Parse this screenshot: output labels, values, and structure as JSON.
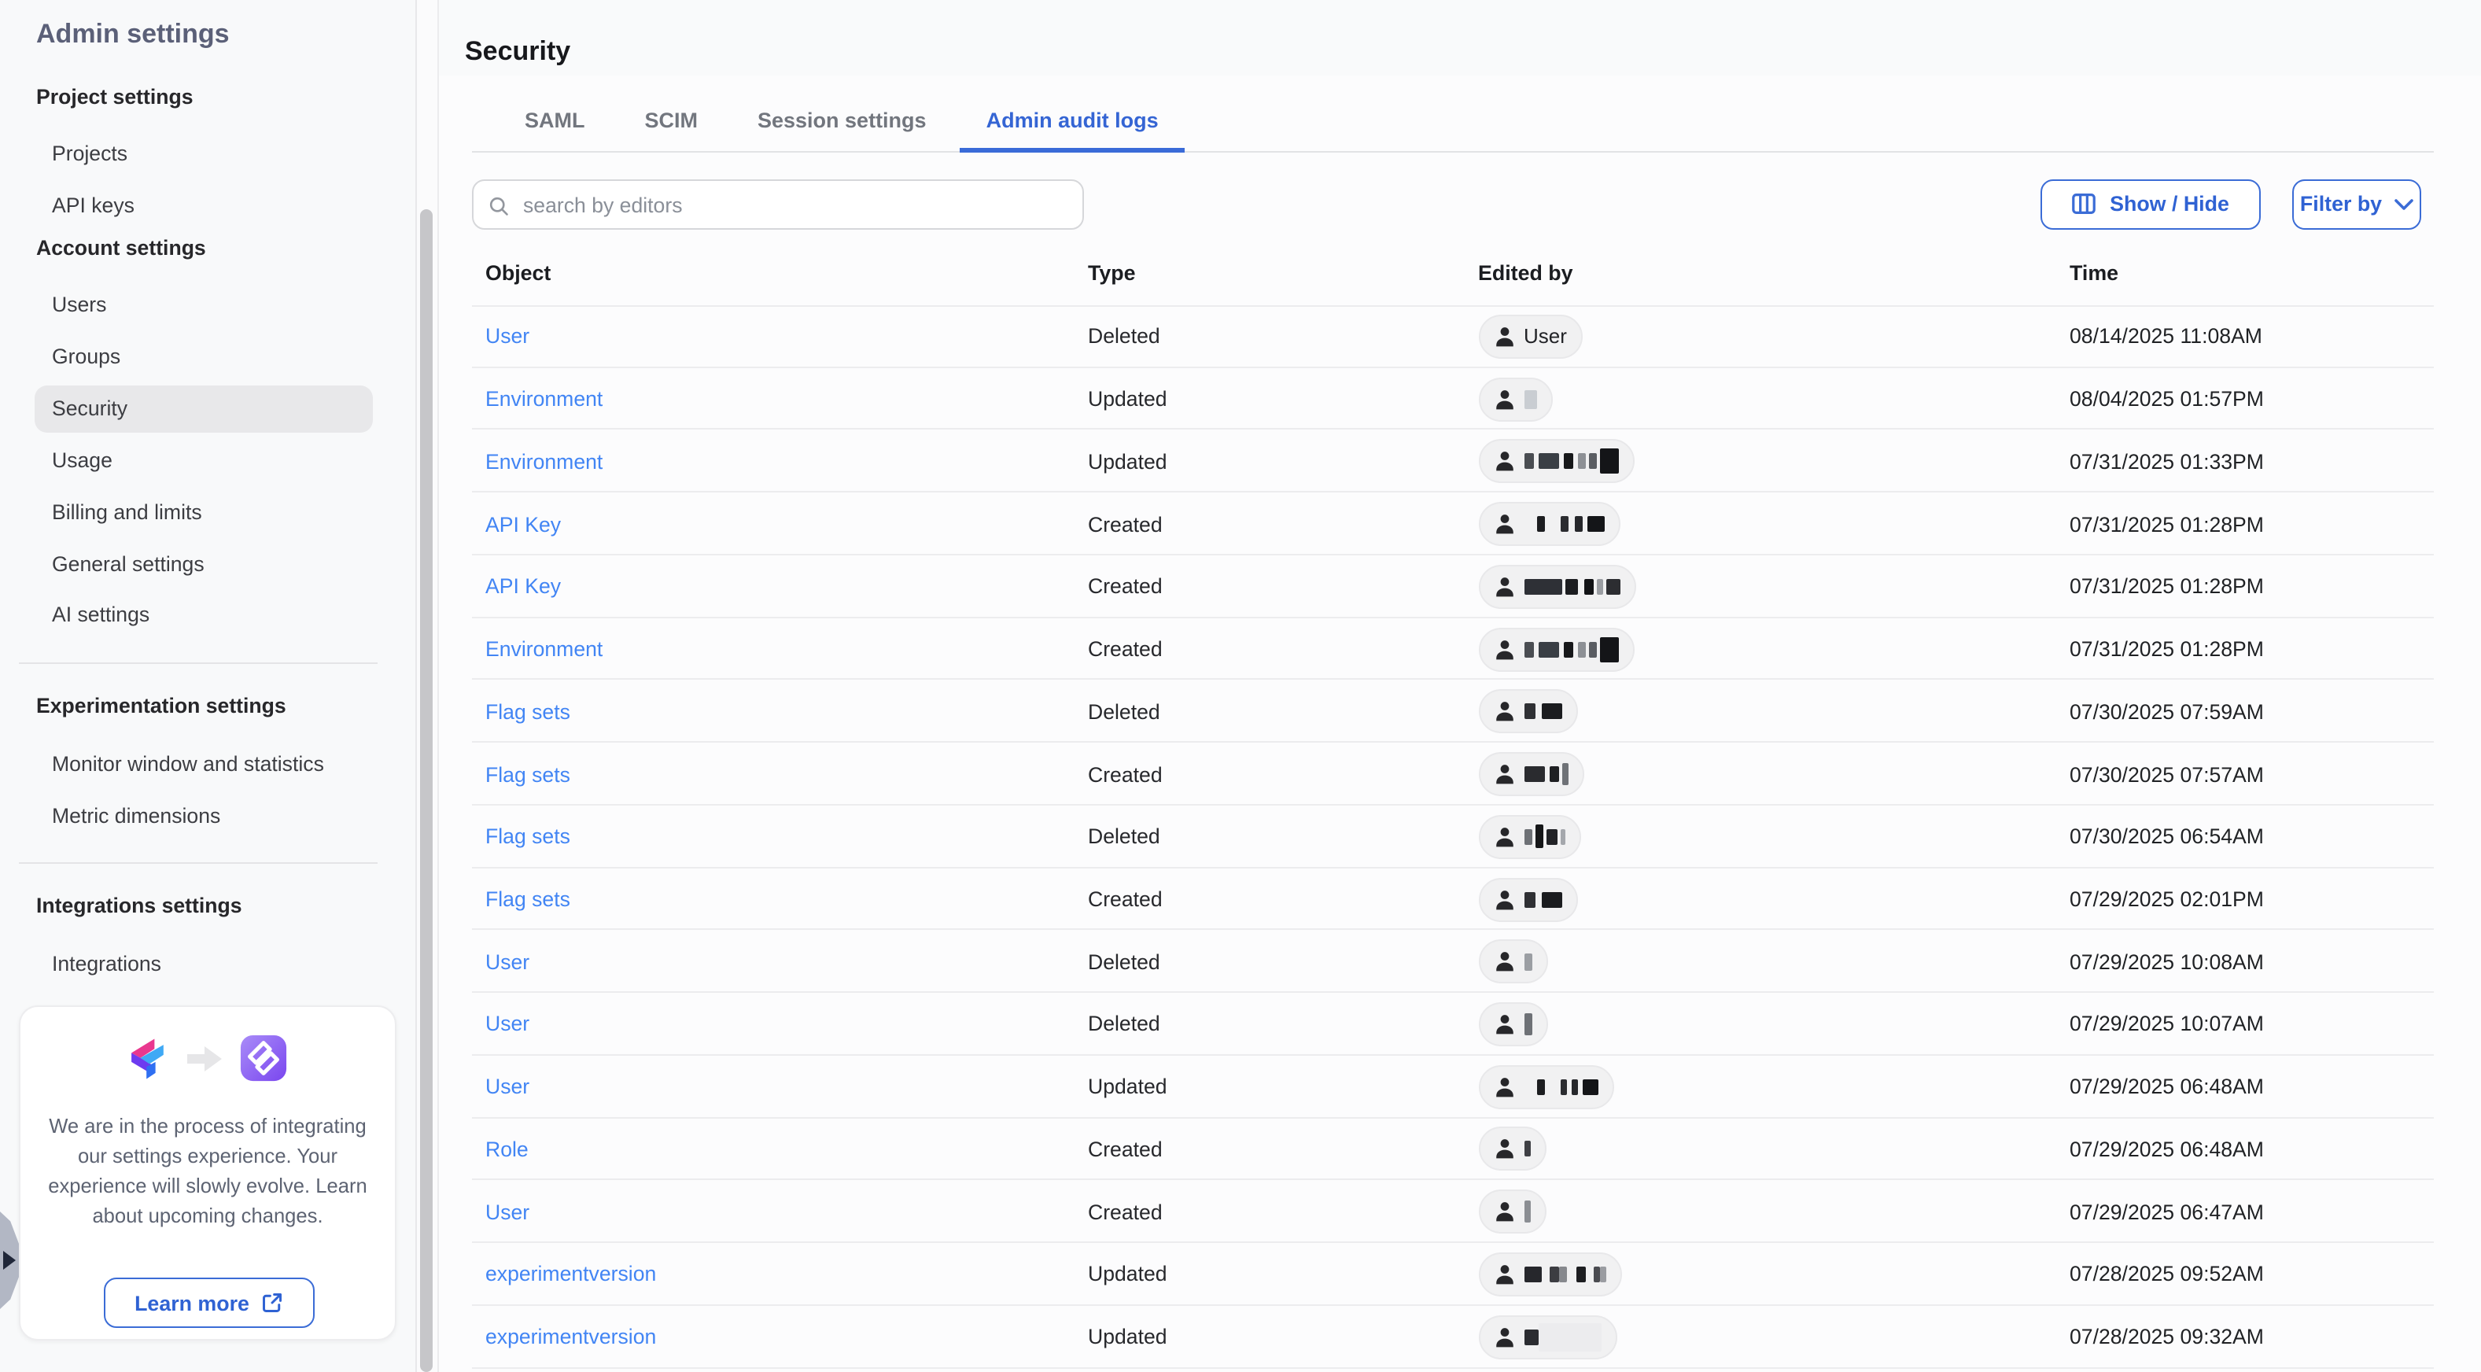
{
  "sidebar": {
    "title": "Admin settings",
    "sections": [
      {
        "type": "header",
        "label": "Project settings"
      },
      {
        "type": "item",
        "label": "Projects"
      },
      {
        "type": "item",
        "label": "API keys"
      },
      {
        "type": "header",
        "label": "Account settings"
      },
      {
        "type": "item",
        "label": "Users"
      },
      {
        "type": "item",
        "label": "Groups"
      },
      {
        "type": "item",
        "label": "Security",
        "selected": true
      },
      {
        "type": "item",
        "label": "Usage"
      },
      {
        "type": "item",
        "label": "Billing and limits"
      },
      {
        "type": "item",
        "label": "General settings"
      },
      {
        "type": "item",
        "label": "AI settings"
      },
      {
        "type": "divider"
      },
      {
        "type": "header",
        "label": "Experimentation settings"
      },
      {
        "type": "item",
        "label": "Monitor window and statistics"
      },
      {
        "type": "item",
        "label": "Metric dimensions"
      },
      {
        "type": "divider"
      },
      {
        "type": "header",
        "label": "Integrations settings"
      },
      {
        "type": "item",
        "label": "Integrations"
      }
    ],
    "promo": {
      "text": "We are in the process of integrating our settings experience. Your experience will slowly evolve. Learn about upcoming changes.",
      "button_label": "Learn more",
      "icons": [
        "split-logo",
        "arrow-right-icon",
        "new-platform-logo",
        "external-link-icon"
      ]
    }
  },
  "header": {
    "title": "Security"
  },
  "tabs": [
    {
      "label": "SAML",
      "active": false
    },
    {
      "label": "SCIM",
      "active": false
    },
    {
      "label": "Session settings",
      "active": false
    },
    {
      "label": "Admin audit logs",
      "active": true
    }
  ],
  "toolbar": {
    "search_placeholder": "search by editors",
    "show_hide_label": "Show / Hide",
    "filter_by_label": "Filter by",
    "icons": [
      "search-icon",
      "columns-icon",
      "chevron-down-icon"
    ]
  },
  "table": {
    "columns": [
      "Object",
      "Type",
      "Edited by",
      "Time"
    ],
    "rows": [
      {
        "object": "User",
        "type": "Deleted",
        "editor": {
          "label": "User"
        },
        "time": "08/14/2025 11:08AM"
      },
      {
        "object": "Environment",
        "type": "Updated",
        "editor": {
          "redacted": true,
          "blocks": [
            {
              "w": 8,
              "c": "#c9cdd2",
              "h": 12
            }
          ]
        },
        "time": "08/04/2025 01:57PM"
      },
      {
        "object": "Environment",
        "type": "Updated",
        "editor": {
          "redacted": true,
          "blocks": [
            {
              "w": 6,
              "c": "#4a4d52"
            },
            {
              "w": 3
            },
            {
              "w": 13,
              "c": "#3a3f45"
            },
            {
              "w": 3
            },
            {
              "w": 6,
              "c": "#17181a"
            },
            {
              "w": 3
            },
            {
              "w": 5,
              "c": "#8d9095"
            },
            {
              "w": 2
            },
            {
              "w": 5,
              "c": "#5a5d62"
            },
            {
              "w": 2
            },
            {
              "w": 12,
              "c": "#141518",
              "h": 16
            }
          ]
        },
        "time": "07/31/2025 01:33PM"
      },
      {
        "object": "API Key",
        "type": "Created",
        "editor": {
          "redacted": true,
          "blocks": [
            {
              "w": 8
            },
            {
              "w": 5,
              "c": "#1c1d20"
            },
            {
              "w": 10
            },
            {
              "w": 5,
              "c": "#2b2c30"
            },
            {
              "w": 4
            },
            {
              "w": 5,
              "c": "#26272b"
            },
            {
              "w": 3
            },
            {
              "w": 11,
              "c": "#141518"
            }
          ]
        },
        "time": "07/31/2025 01:28PM"
      },
      {
        "object": "API Key",
        "type": "Created",
        "editor": {
          "redacted": true,
          "blocks": [
            {
              "w": 24,
              "c": "#2e3036"
            },
            {
              "w": 2
            },
            {
              "w": 8,
              "c": "#1c1d20"
            },
            {
              "w": 4
            },
            {
              "w": 6,
              "c": "#121316"
            },
            {
              "w": 2
            },
            {
              "w": 4,
              "c": "#9a9da2"
            },
            {
              "w": 2
            },
            {
              "w": 9,
              "c": "#2c2d31"
            }
          ]
        },
        "time": "07/31/2025 01:28PM"
      },
      {
        "object": "Environment",
        "type": "Created",
        "editor": {
          "redacted": true,
          "blocks": [
            {
              "w": 6,
              "c": "#4a4d52"
            },
            {
              "w": 3
            },
            {
              "w": 13,
              "c": "#3a3f45"
            },
            {
              "w": 3
            },
            {
              "w": 6,
              "c": "#17181a"
            },
            {
              "w": 3
            },
            {
              "w": 5,
              "c": "#8d9095"
            },
            {
              "w": 2
            },
            {
              "w": 5,
              "c": "#5a5d62"
            },
            {
              "w": 2
            },
            {
              "w": 12,
              "c": "#141518",
              "h": 16
            }
          ]
        },
        "time": "07/31/2025 01:28PM"
      },
      {
        "object": "Flag sets",
        "type": "Deleted",
        "editor": {
          "redacted": true,
          "blocks": [
            {
              "w": 7,
              "c": "#2f3034"
            },
            {
              "w": 4
            },
            {
              "w": 13,
              "c": "#1b1c1f"
            }
          ]
        },
        "time": "07/30/2025 07:59AM"
      },
      {
        "object": "Flag sets",
        "type": "Created",
        "editor": {
          "redacted": true,
          "blocks": [
            {
              "w": 13,
              "c": "#2a2b2f"
            },
            {
              "w": 3
            },
            {
              "w": 6,
              "c": "#1f2023"
            },
            {
              "w": 2
            },
            {
              "w": 4,
              "c": "#6f7277",
              "h": 14
            }
          ]
        },
        "time": "07/30/2025 07:57AM"
      },
      {
        "object": "Flag sets",
        "type": "Deleted",
        "editor": {
          "redacted": true,
          "blocks": [
            {
              "w": 5,
              "c": "#6e7176"
            },
            {
              "w": 2
            },
            {
              "w": 5,
              "c": "#161719",
              "h": 15
            },
            {
              "w": 2
            },
            {
              "w": 7,
              "c": "#222327"
            },
            {
              "w": 2
            },
            {
              "w": 3,
              "c": "#a4a7ac"
            }
          ]
        },
        "time": "07/30/2025 06:54AM"
      },
      {
        "object": "Flag sets",
        "type": "Created",
        "editor": {
          "redacted": true,
          "blocks": [
            {
              "w": 7,
              "c": "#2f3034"
            },
            {
              "w": 4
            },
            {
              "w": 13,
              "c": "#1b1c1f"
            }
          ]
        },
        "time": "07/29/2025 02:01PM"
      },
      {
        "object": "User",
        "type": "Deleted",
        "editor": {
          "redacted": true,
          "blocks": [
            {
              "w": 5,
              "c": "#9b9ea3",
              "h": 11
            }
          ]
        },
        "time": "07/29/2025 10:08AM"
      },
      {
        "object": "User",
        "type": "Deleted",
        "editor": {
          "redacted": true,
          "blocks": [
            {
              "w": 5,
              "c": "#6e7176",
              "h": 14
            }
          ]
        },
        "time": "07/29/2025 10:07AM"
      },
      {
        "object": "User",
        "type": "Updated",
        "editor": {
          "redacted": true,
          "blocks": [
            {
              "w": 8
            },
            {
              "w": 5,
              "c": "#1c1d20"
            },
            {
              "w": 10
            },
            {
              "w": 4,
              "c": "#2b2c30"
            },
            {
              "w": 3
            },
            {
              "w": 4,
              "c": "#26272b"
            },
            {
              "w": 3
            },
            {
              "w": 10,
              "c": "#141518"
            }
          ]
        },
        "time": "07/29/2025 06:48AM"
      },
      {
        "object": "Role",
        "type": "Created",
        "editor": {
          "redacted": true,
          "blocks": [
            {
              "w": 4,
              "c": "#3f4045"
            }
          ]
        },
        "time": "07/29/2025 06:48AM"
      },
      {
        "object": "User",
        "type": "Created",
        "editor": {
          "redacted": true,
          "blocks": [
            {
              "w": 4,
              "c": "#8b8e93",
              "h": 14
            }
          ]
        },
        "time": "07/29/2025 06:47AM"
      },
      {
        "object": "experimentversion",
        "type": "Updated",
        "editor": {
          "redacted": true,
          "blocks": [
            {
              "w": 11,
              "c": "#26272c"
            },
            {
              "w": 5
            },
            {
              "w": 6,
              "c": "#3c3d42"
            },
            {
              "w": 5,
              "c": "#86888d"
            },
            {
              "w": 6
            },
            {
              "w": 6,
              "c": "#1d1e21"
            },
            {
              "w": 5
            },
            {
              "w": 4,
              "c": "#4a4b50"
            },
            {
              "w": 4,
              "c": "#9a9ca1"
            }
          ]
        },
        "time": "07/28/2025 09:52AM"
      },
      {
        "object": "experimentversion",
        "type": "Updated",
        "editor": {
          "redacted": true,
          "blocks": [
            {
              "w": 9,
              "c": "#2b2c31"
            },
            {
              "w": 40,
              "c": "#ececee",
              "h": 18
            }
          ]
        },
        "time": "07/28/2025 09:32AM"
      }
    ]
  },
  "colors": {
    "accent": "#3a6bd8",
    "link": "#4285f4",
    "tab_active": "#3565d4",
    "selected_bg": "#e8e8ea"
  }
}
